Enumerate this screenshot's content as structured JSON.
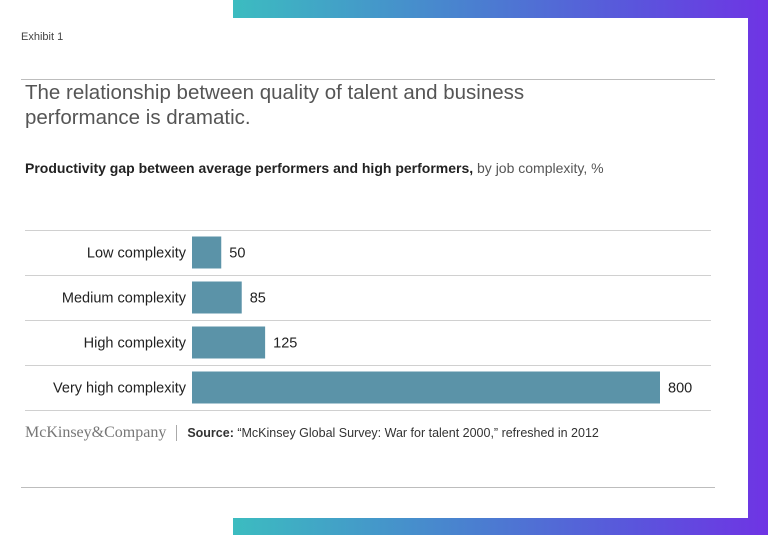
{
  "exhibit": "Exhibit 1",
  "title": "The relationship between quality of talent and business performance is dramatic.",
  "subtitle_bold": "Productivity gap between average performers and high performers,",
  "subtitle_light": " by job complexity, %",
  "footer": {
    "logo": "McKinsey&Company",
    "source_label": "Source:",
    "source_text": " “McKinsey Global Survey: War for talent 2000,” refreshed in 2012"
  },
  "colors": {
    "bar": "#5b93a8",
    "gradient_start": "#3cbcc0",
    "gradient_end": "#6f34e4"
  },
  "chart_data": {
    "type": "bar",
    "orientation": "horizontal",
    "categories": [
      "Low complexity",
      "Medium complexity",
      "High complexity",
      "Very high complexity"
    ],
    "values": [
      50,
      85,
      125,
      800
    ],
    "data_labels": [
      "50",
      "85",
      "125",
      "800"
    ],
    "title": "Productivity gap between average performers and high performers, by job complexity, %",
    "xlim": [
      0,
      800
    ],
    "grid": "row separators"
  }
}
